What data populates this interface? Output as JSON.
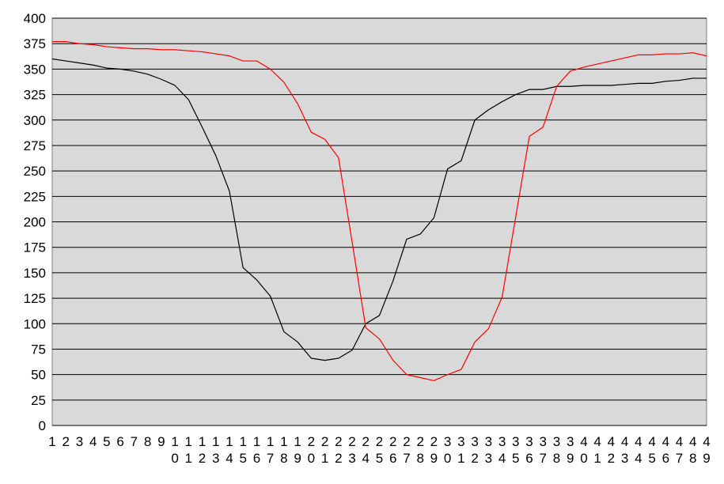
{
  "chart_data": {
    "type": "line",
    "title": "",
    "xlabel": "",
    "ylabel": "",
    "ylim": [
      0,
      400
    ],
    "y_ticks": [
      "0",
      "25",
      "50",
      "75",
      "100",
      "125",
      "150",
      "175",
      "200",
      "225",
      "250",
      "275",
      "300",
      "325",
      "350",
      "375",
      "400"
    ],
    "x": [
      1,
      2,
      3,
      4,
      5,
      6,
      7,
      8,
      9,
      10,
      11,
      12,
      13,
      14,
      15,
      16,
      17,
      18,
      19,
      20,
      21,
      22,
      23,
      24,
      25,
      26,
      27,
      28,
      29,
      30,
      31,
      32,
      33,
      34,
      35,
      36,
      37,
      38,
      39,
      40,
      41,
      42,
      43,
      44,
      45,
      46,
      47,
      48,
      49
    ],
    "x_tick_labels": [
      "1",
      "2",
      "3",
      "4",
      "5",
      "6",
      "7",
      "8",
      "9",
      "10",
      "11",
      "12",
      "13",
      "14",
      "15",
      "16",
      "17",
      "18",
      "19",
      "20",
      "21",
      "22",
      "23",
      "24",
      "25",
      "26",
      "27",
      "28",
      "29",
      "30",
      "31",
      "32",
      "33",
      "34",
      "35",
      "36",
      "37",
      "38",
      "39",
      "40",
      "41",
      "42",
      "43",
      "44",
      "45",
      "46",
      "47",
      "48",
      "49"
    ],
    "grid": true,
    "legend": "none",
    "plot_background": "#d9d9d9",
    "series": [
      {
        "color": "#000000",
        "values": [
          360,
          358,
          356,
          354,
          351,
          350,
          348,
          345,
          340,
          334,
          320,
          293,
          265,
          230,
          155,
          143,
          127,
          92,
          82,
          66,
          64,
          66,
          74,
          100,
          108,
          142,
          183,
          188,
          204,
          252,
          260,
          300,
          310,
          318,
          325,
          330,
          330,
          333,
          333,
          334,
          334,
          334,
          335,
          336,
          336,
          338,
          339,
          341,
          341
        ]
      },
      {
        "color": "#ff0000",
        "values": [
          377,
          377,
          375,
          374,
          372,
          371,
          370,
          370,
          369,
          369,
          368,
          367,
          365,
          363,
          358,
          358,
          350,
          337,
          316,
          288,
          281,
          263,
          180,
          96,
          85,
          64,
          50,
          47,
          44,
          50,
          55,
          82,
          95,
          126,
          205,
          284,
          293,
          333,
          348,
          352,
          355,
          358,
          361,
          364,
          364,
          365,
          365,
          366,
          363
        ]
      }
    ]
  }
}
